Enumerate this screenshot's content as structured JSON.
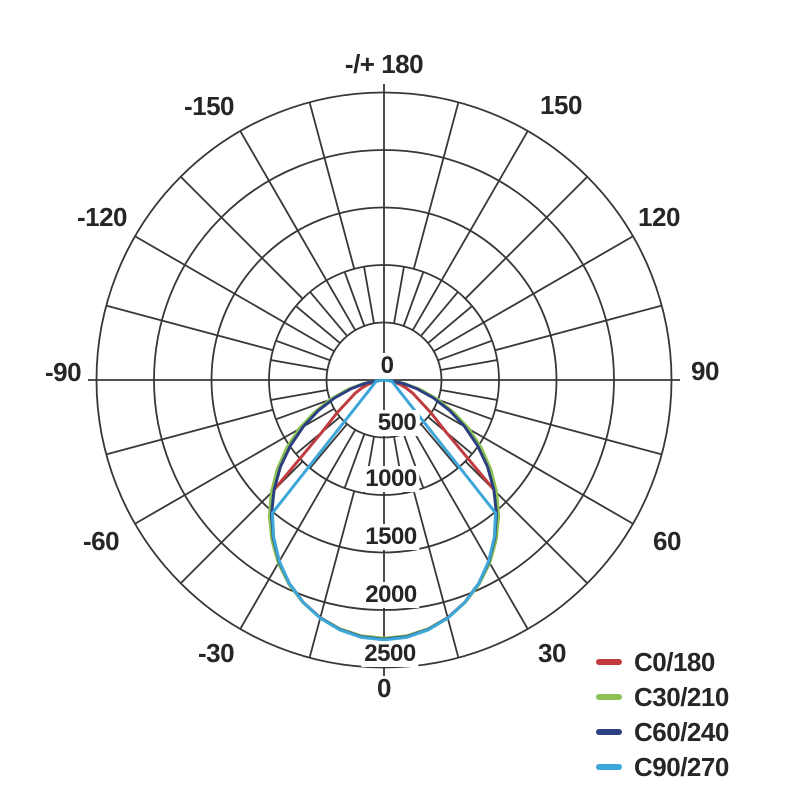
{
  "chart_data": {
    "type": "polar-line",
    "title": "",
    "angle_labels": [
      "-/+ 180",
      "-150",
      "150",
      "-120",
      "120",
      "-90",
      "90",
      "-60",
      "60",
      "-30",
      "30",
      "0"
    ],
    "angle_grid_step_deg": 15,
    "angle_grid_fine_step_deg": 10,
    "radial_axis": {
      "tick_labels": [
        "0",
        "500",
        "1000",
        "1500",
        "2000",
        "2500"
      ],
      "tick_values": [
        0,
        500,
        1000,
        1500,
        2000,
        2500
      ],
      "max": 2500
    },
    "legend_position": "bottom-right",
    "grid_color": "#373737",
    "series": [
      {
        "name": "C0/180",
        "color": "#c23b3f",
        "symmetric": true,
        "gamma_deg": [
          0,
          5,
          10,
          15,
          20,
          25,
          30,
          35,
          40,
          45,
          50,
          55,
          60,
          65,
          70,
          75,
          80,
          85,
          90
        ],
        "values": [
          2250,
          2238,
          2200,
          2140,
          2056,
          1952,
          1827,
          1684,
          1529,
          1361,
          700,
          500,
          355,
          280,
          205,
          140,
          80,
          30,
          0
        ]
      },
      {
        "name": "C30/210",
        "color": "#8cc153",
        "symmetric": true,
        "gamma_deg": [
          0,
          5,
          10,
          15,
          20,
          25,
          30,
          35,
          40,
          45,
          50,
          55,
          60,
          65,
          70,
          75,
          80,
          85,
          90
        ],
        "values": [
          2245,
          2234,
          2198,
          2142,
          2060,
          1958,
          1838,
          1700,
          1550,
          1386,
          1214,
          1036,
          855,
          672,
          497,
          334,
          188,
          70,
          0
        ]
      },
      {
        "name": "C60/240",
        "color": "#2c3f80",
        "symmetric": true,
        "gamma_deg": [
          0,
          5,
          10,
          15,
          20,
          25,
          30,
          35,
          40,
          45,
          50,
          55,
          60,
          65,
          70,
          75,
          80,
          85,
          90
        ],
        "values": [
          2255,
          2242,
          2203,
          2142,
          2057,
          1951,
          1824,
          1679,
          1522,
          1352,
          1176,
          992,
          810,
          630,
          458,
          300,
          162,
          55,
          0
        ]
      },
      {
        "name": "C90/270",
        "color": "#3ea7d9",
        "symmetric": true,
        "gamma_deg": [
          0,
          5,
          10,
          15,
          20,
          25,
          30,
          35,
          40,
          80,
          85,
          90
        ],
        "values": [
          2260,
          2247,
          2207,
          2144,
          2058,
          1950,
          1820,
          1672,
          1510,
          70,
          25,
          0
        ]
      }
    ]
  }
}
